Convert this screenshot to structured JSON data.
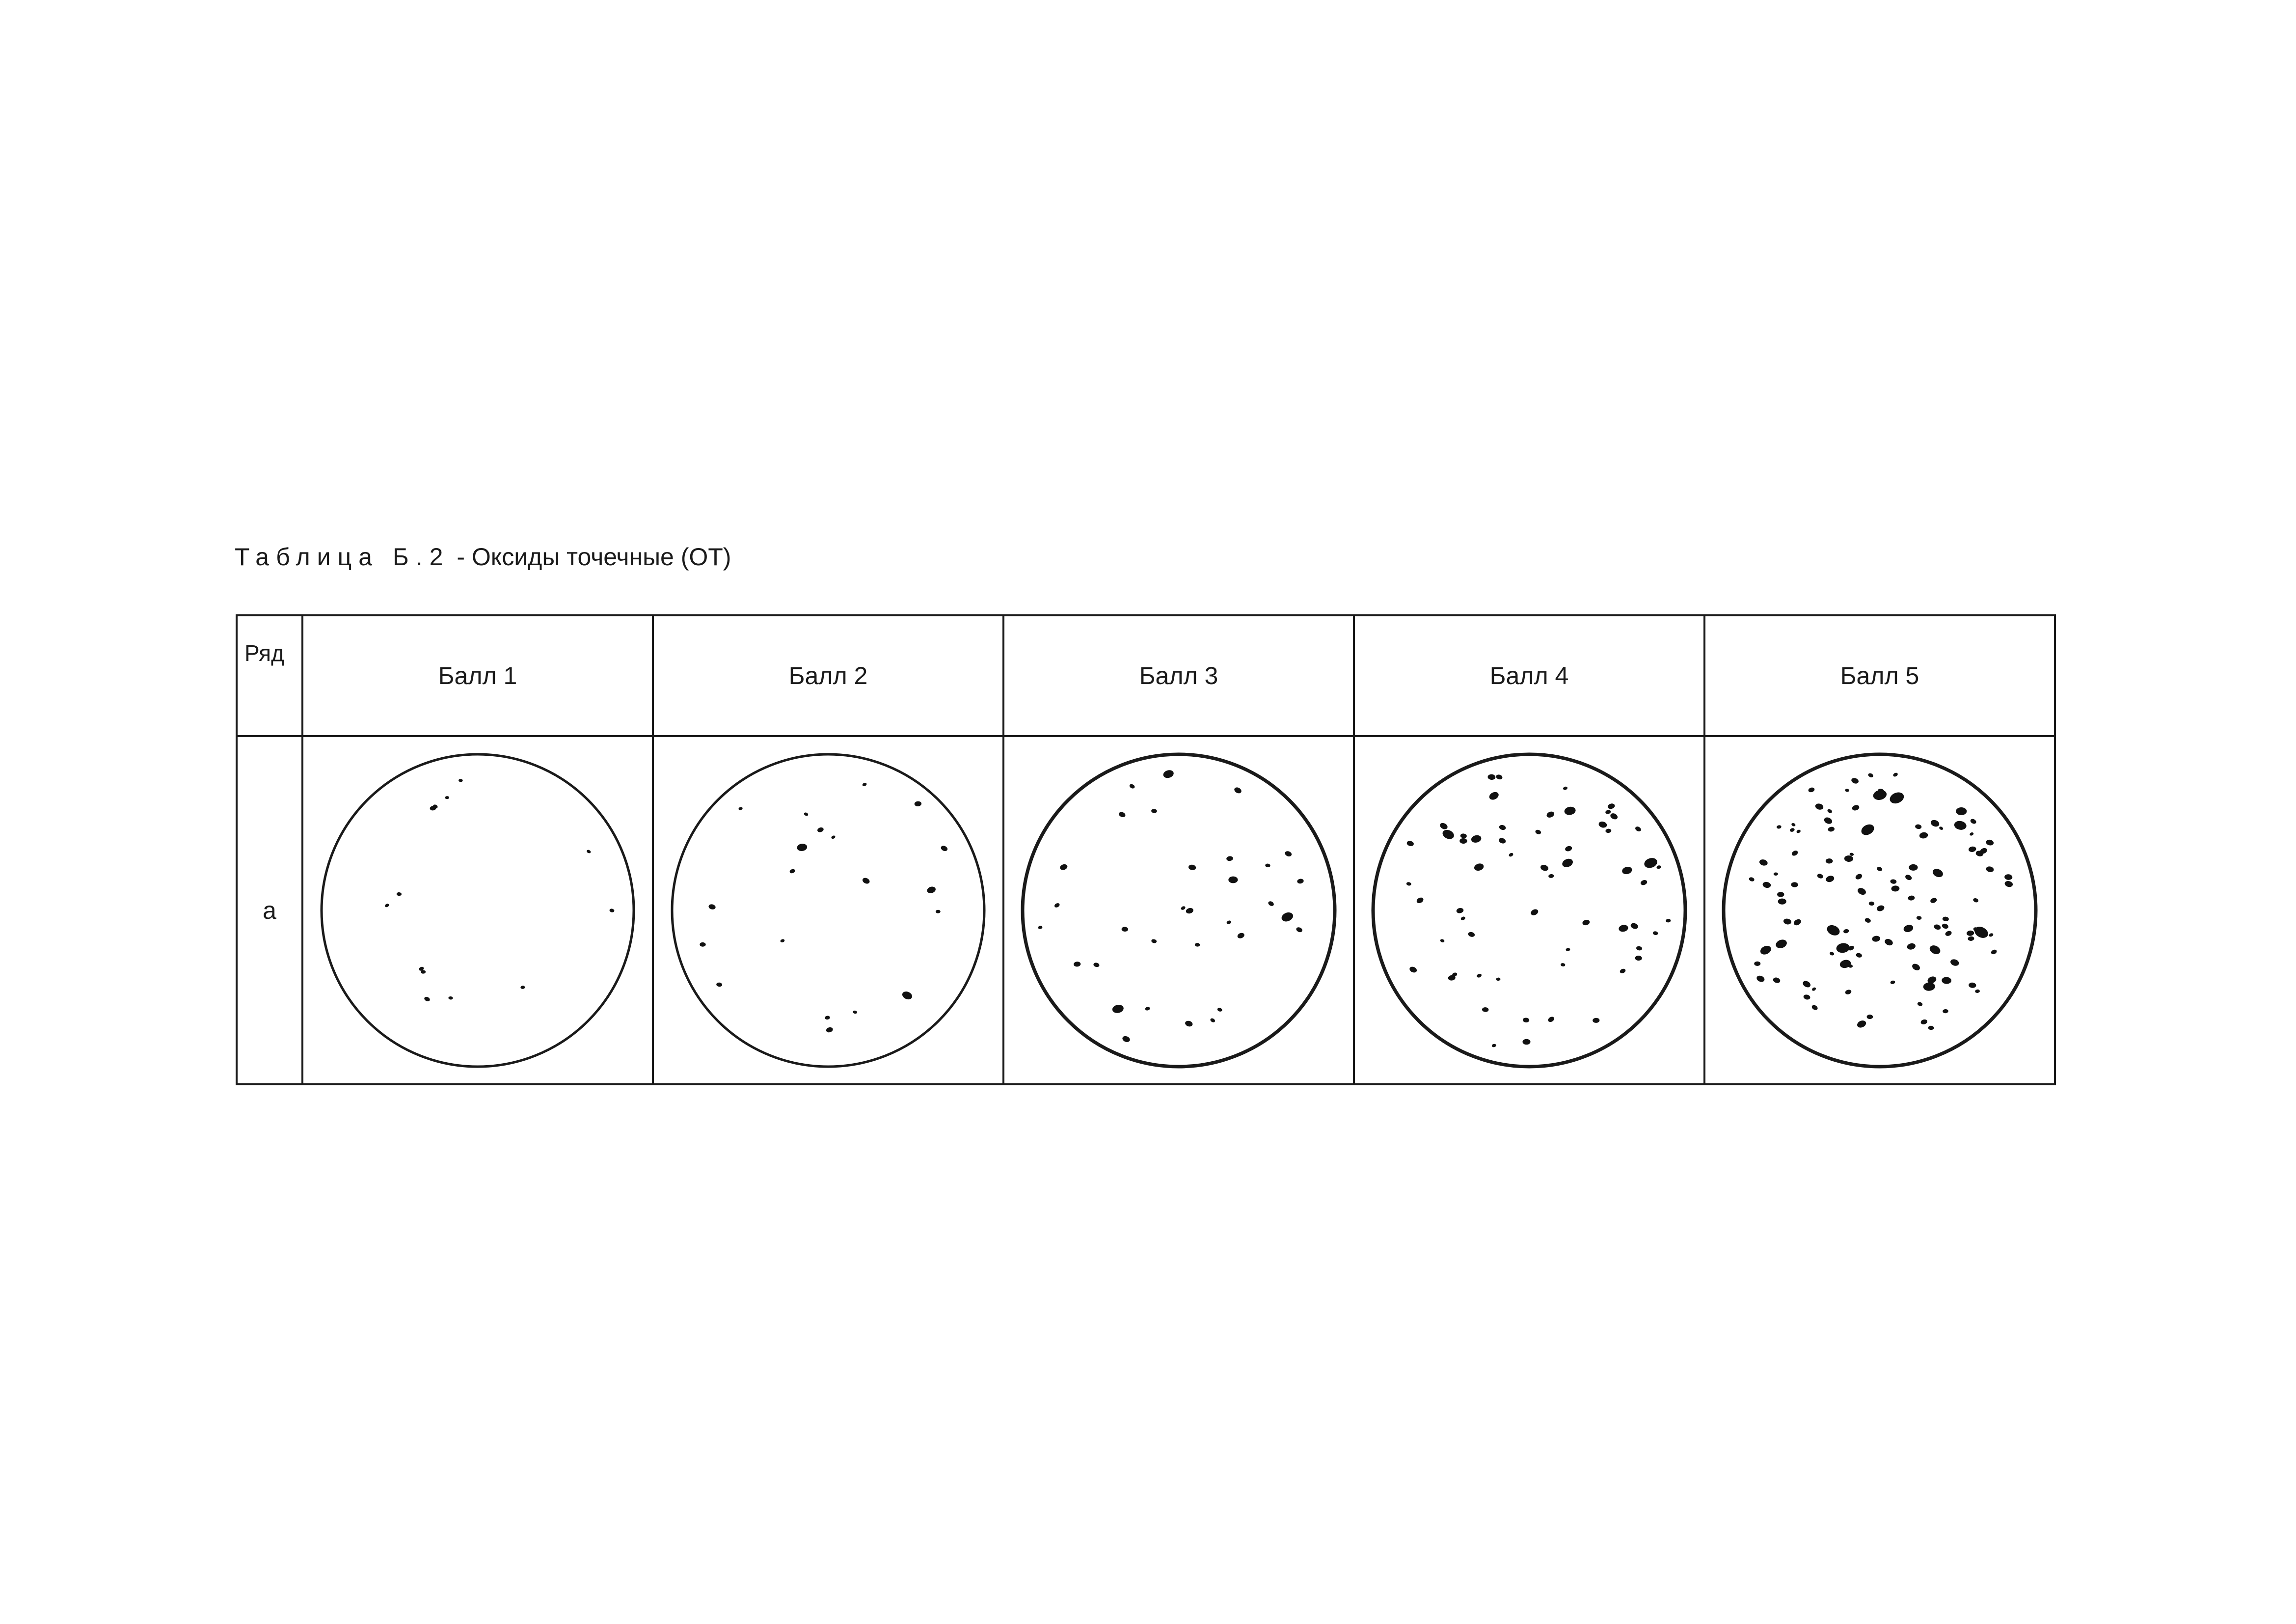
{
  "title": {
    "label": "Таблица Б.2",
    "text": "- Оксиды точечные (ОТ)"
  },
  "table": {
    "header": {
      "row_col": "Ряд",
      "scores": [
        "Балл 1",
        "Балл 2",
        "Балл 3",
        "Балл 4",
        "Балл 5"
      ]
    },
    "rows": [
      {
        "label": "а"
      }
    ]
  }
}
